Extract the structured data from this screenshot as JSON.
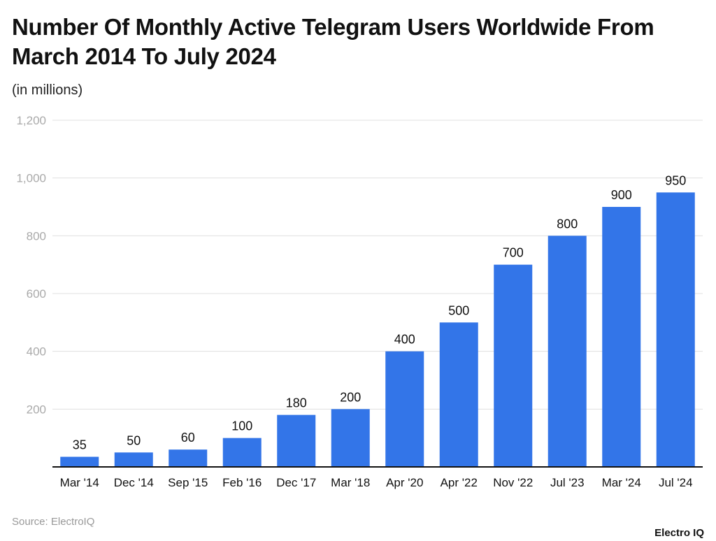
{
  "chart_data": {
    "type": "bar",
    "title": "Number Of Monthly Active Telegram Users Worldwide From March 2014 To July 2024",
    "subtitle": "(in millions)",
    "categories": [
      "Mar '14",
      "Dec '14",
      "Sep '15",
      "Feb '16",
      "Dec '17",
      "Mar '18",
      "Apr '20",
      "Apr '22",
      "Nov '22",
      "Jul '23",
      "Mar '24",
      "Jul '24"
    ],
    "values": [
      35,
      50,
      60,
      100,
      180,
      200,
      400,
      500,
      700,
      800,
      900,
      950
    ],
    "ylim": [
      0,
      1200
    ],
    "yticks": [
      200,
      400,
      600,
      800,
      1000,
      1200
    ],
    "ytick_labels": [
      "200",
      "400",
      "600",
      "800",
      "1,000",
      "1,200"
    ],
    "grid": true,
    "bar_color": "#3375e8",
    "data_labels": true
  },
  "source": "Source: ElectroIQ",
  "logo": "Electro IQ"
}
